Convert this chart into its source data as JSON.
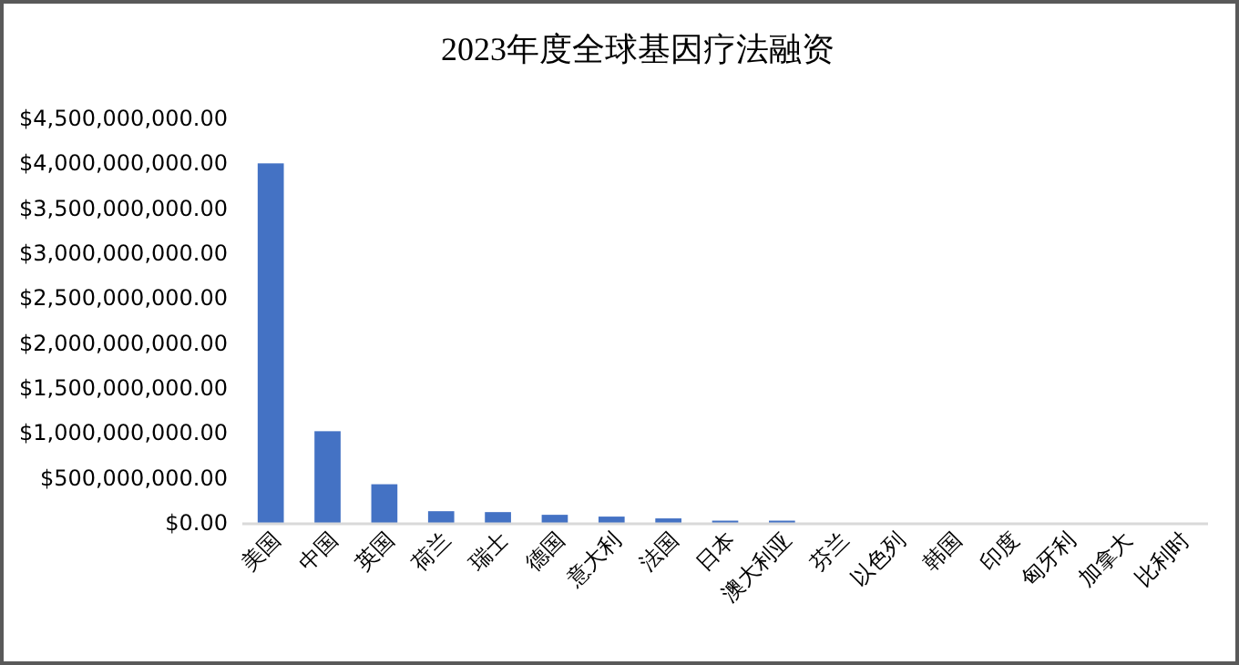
{
  "chart_data": {
    "type": "bar",
    "title": "2023年度全球基因疗法融资",
    "categories": [
      "美国",
      "中国",
      "英国",
      "荷兰",
      "瑞士",
      "德国",
      "意大利",
      "法国",
      "日本",
      "澳大利亚",
      "芬兰",
      "以色列",
      "韩国",
      "印度",
      "匈牙利",
      "加拿大",
      "比利时"
    ],
    "values": [
      4000000000,
      1020000000,
      430000000,
      130000000,
      120000000,
      90000000,
      70000000,
      50000000,
      25000000,
      25000000,
      0,
      0,
      0,
      0,
      0,
      0,
      0
    ],
    "color": "#4472c4",
    "ylim": [
      0,
      4500000000
    ],
    "yticks": [
      {
        "value": 0,
        "label": "$0.00"
      },
      {
        "value": 500000000,
        "label": "$500,000,000.00"
      },
      {
        "value": 1000000000,
        "label": "$1,000,000,000.00"
      },
      {
        "value": 1500000000,
        "label": "$1,500,000,000.00"
      },
      {
        "value": 2000000000,
        "label": "$2,000,000,000.00"
      },
      {
        "value": 2500000000,
        "label": "$2,500,000,000.00"
      },
      {
        "value": 3000000000,
        "label": "$3,000,000,000.00"
      },
      {
        "value": 3500000000,
        "label": "$3,500,000,000.00"
      },
      {
        "value": 4000000000,
        "label": "$4,000,000,000.00"
      },
      {
        "value": 4500000000,
        "label": "$4,500,000,000.00"
      }
    ]
  }
}
